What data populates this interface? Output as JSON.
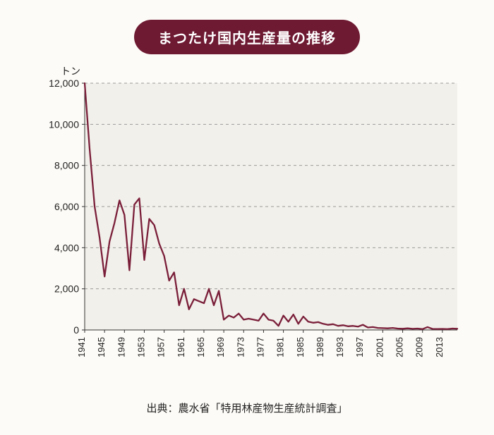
{
  "title": {
    "text": "まつたけ国内生産量の推移",
    "pill_bg": "#6e1a33",
    "pill_fg": "#ffffff",
    "fontsize": 20
  },
  "source": "出典：農水省「特用林産物生産統計調査」",
  "chart": {
    "type": "line",
    "ylabel": "トン",
    "yaxis": {
      "min": 0,
      "max": 12000,
      "step": 2000,
      "tick_labels": [
        "0",
        "2,000",
        "4,000",
        "6,000",
        "8,000",
        "10,000",
        "12,000"
      ],
      "label_fontsize": 14,
      "tick_fontsize": 14
    },
    "xaxis": {
      "min": 1941,
      "max": 2016,
      "tick_years": [
        1941,
        1945,
        1949,
        1953,
        1957,
        1961,
        1965,
        1969,
        1973,
        1977,
        1981,
        1985,
        1989,
        1993,
        1997,
        2001,
        2005,
        2009,
        2013
      ],
      "tick_fontsize": 13
    },
    "line": {
      "color": "#7a1f3a",
      "width": 2.3
    },
    "grid": {
      "color": "#9a9a9a",
      "dash": "4 4",
      "width": 1
    },
    "plot_bg": "#f2f0ea",
    "axis_color": "#333333",
    "data": [
      {
        "year": 1941,
        "value": 12200
      },
      {
        "year": 1942,
        "value": 8800
      },
      {
        "year": 1943,
        "value": 6000
      },
      {
        "year": 1944,
        "value": 4500
      },
      {
        "year": 1945,
        "value": 2600
      },
      {
        "year": 1946,
        "value": 4300
      },
      {
        "year": 1947,
        "value": 5200
      },
      {
        "year": 1948,
        "value": 6300
      },
      {
        "year": 1949,
        "value": 5600
      },
      {
        "year": 1950,
        "value": 2900
      },
      {
        "year": 1951,
        "value": 6100
      },
      {
        "year": 1952,
        "value": 6400
      },
      {
        "year": 1953,
        "value": 3400
      },
      {
        "year": 1954,
        "value": 5400
      },
      {
        "year": 1955,
        "value": 5100
      },
      {
        "year": 1956,
        "value": 4200
      },
      {
        "year": 1957,
        "value": 3600
      },
      {
        "year": 1958,
        "value": 2400
      },
      {
        "year": 1959,
        "value": 2800
      },
      {
        "year": 1960,
        "value": 1200
      },
      {
        "year": 1961,
        "value": 2000
      },
      {
        "year": 1962,
        "value": 1000
      },
      {
        "year": 1963,
        "value": 1500
      },
      {
        "year": 1964,
        "value": 1400
      },
      {
        "year": 1965,
        "value": 1300
      },
      {
        "year": 1966,
        "value": 2000
      },
      {
        "year": 1967,
        "value": 1200
      },
      {
        "year": 1968,
        "value": 1900
      },
      {
        "year": 1969,
        "value": 500
      },
      {
        "year": 1970,
        "value": 700
      },
      {
        "year": 1971,
        "value": 600
      },
      {
        "year": 1972,
        "value": 800
      },
      {
        "year": 1973,
        "value": 500
      },
      {
        "year": 1974,
        "value": 550
      },
      {
        "year": 1975,
        "value": 500
      },
      {
        "year": 1976,
        "value": 450
      },
      {
        "year": 1977,
        "value": 800
      },
      {
        "year": 1978,
        "value": 500
      },
      {
        "year": 1979,
        "value": 450
      },
      {
        "year": 1980,
        "value": 200
      },
      {
        "year": 1981,
        "value": 700
      },
      {
        "year": 1982,
        "value": 400
      },
      {
        "year": 1983,
        "value": 750
      },
      {
        "year": 1984,
        "value": 300
      },
      {
        "year": 1985,
        "value": 650
      },
      {
        "year": 1986,
        "value": 400
      },
      {
        "year": 1987,
        "value": 350
      },
      {
        "year": 1988,
        "value": 380
      },
      {
        "year": 1989,
        "value": 300
      },
      {
        "year": 1990,
        "value": 250
      },
      {
        "year": 1991,
        "value": 280
      },
      {
        "year": 1992,
        "value": 200
      },
      {
        "year": 1993,
        "value": 230
      },
      {
        "year": 1994,
        "value": 180
      },
      {
        "year": 1995,
        "value": 200
      },
      {
        "year": 1996,
        "value": 160
      },
      {
        "year": 1997,
        "value": 250
      },
      {
        "year": 1998,
        "value": 120
      },
      {
        "year": 1999,
        "value": 140
      },
      {
        "year": 2000,
        "value": 100
      },
      {
        "year": 2001,
        "value": 90
      },
      {
        "year": 2002,
        "value": 80
      },
      {
        "year": 2003,
        "value": 100
      },
      {
        "year": 2004,
        "value": 70
      },
      {
        "year": 2005,
        "value": 60
      },
      {
        "year": 2006,
        "value": 80
      },
      {
        "year": 2007,
        "value": 55
      },
      {
        "year": 2008,
        "value": 70
      },
      {
        "year": 2009,
        "value": 40
      },
      {
        "year": 2010,
        "value": 140
      },
      {
        "year": 2011,
        "value": 50
      },
      {
        "year": 2012,
        "value": 45
      },
      {
        "year": 2013,
        "value": 50
      },
      {
        "year": 2014,
        "value": 40
      },
      {
        "year": 2015,
        "value": 70
      },
      {
        "year": 2016,
        "value": 60
      }
    ]
  },
  "colors": {
    "page_bg": "#fdfbf7"
  }
}
